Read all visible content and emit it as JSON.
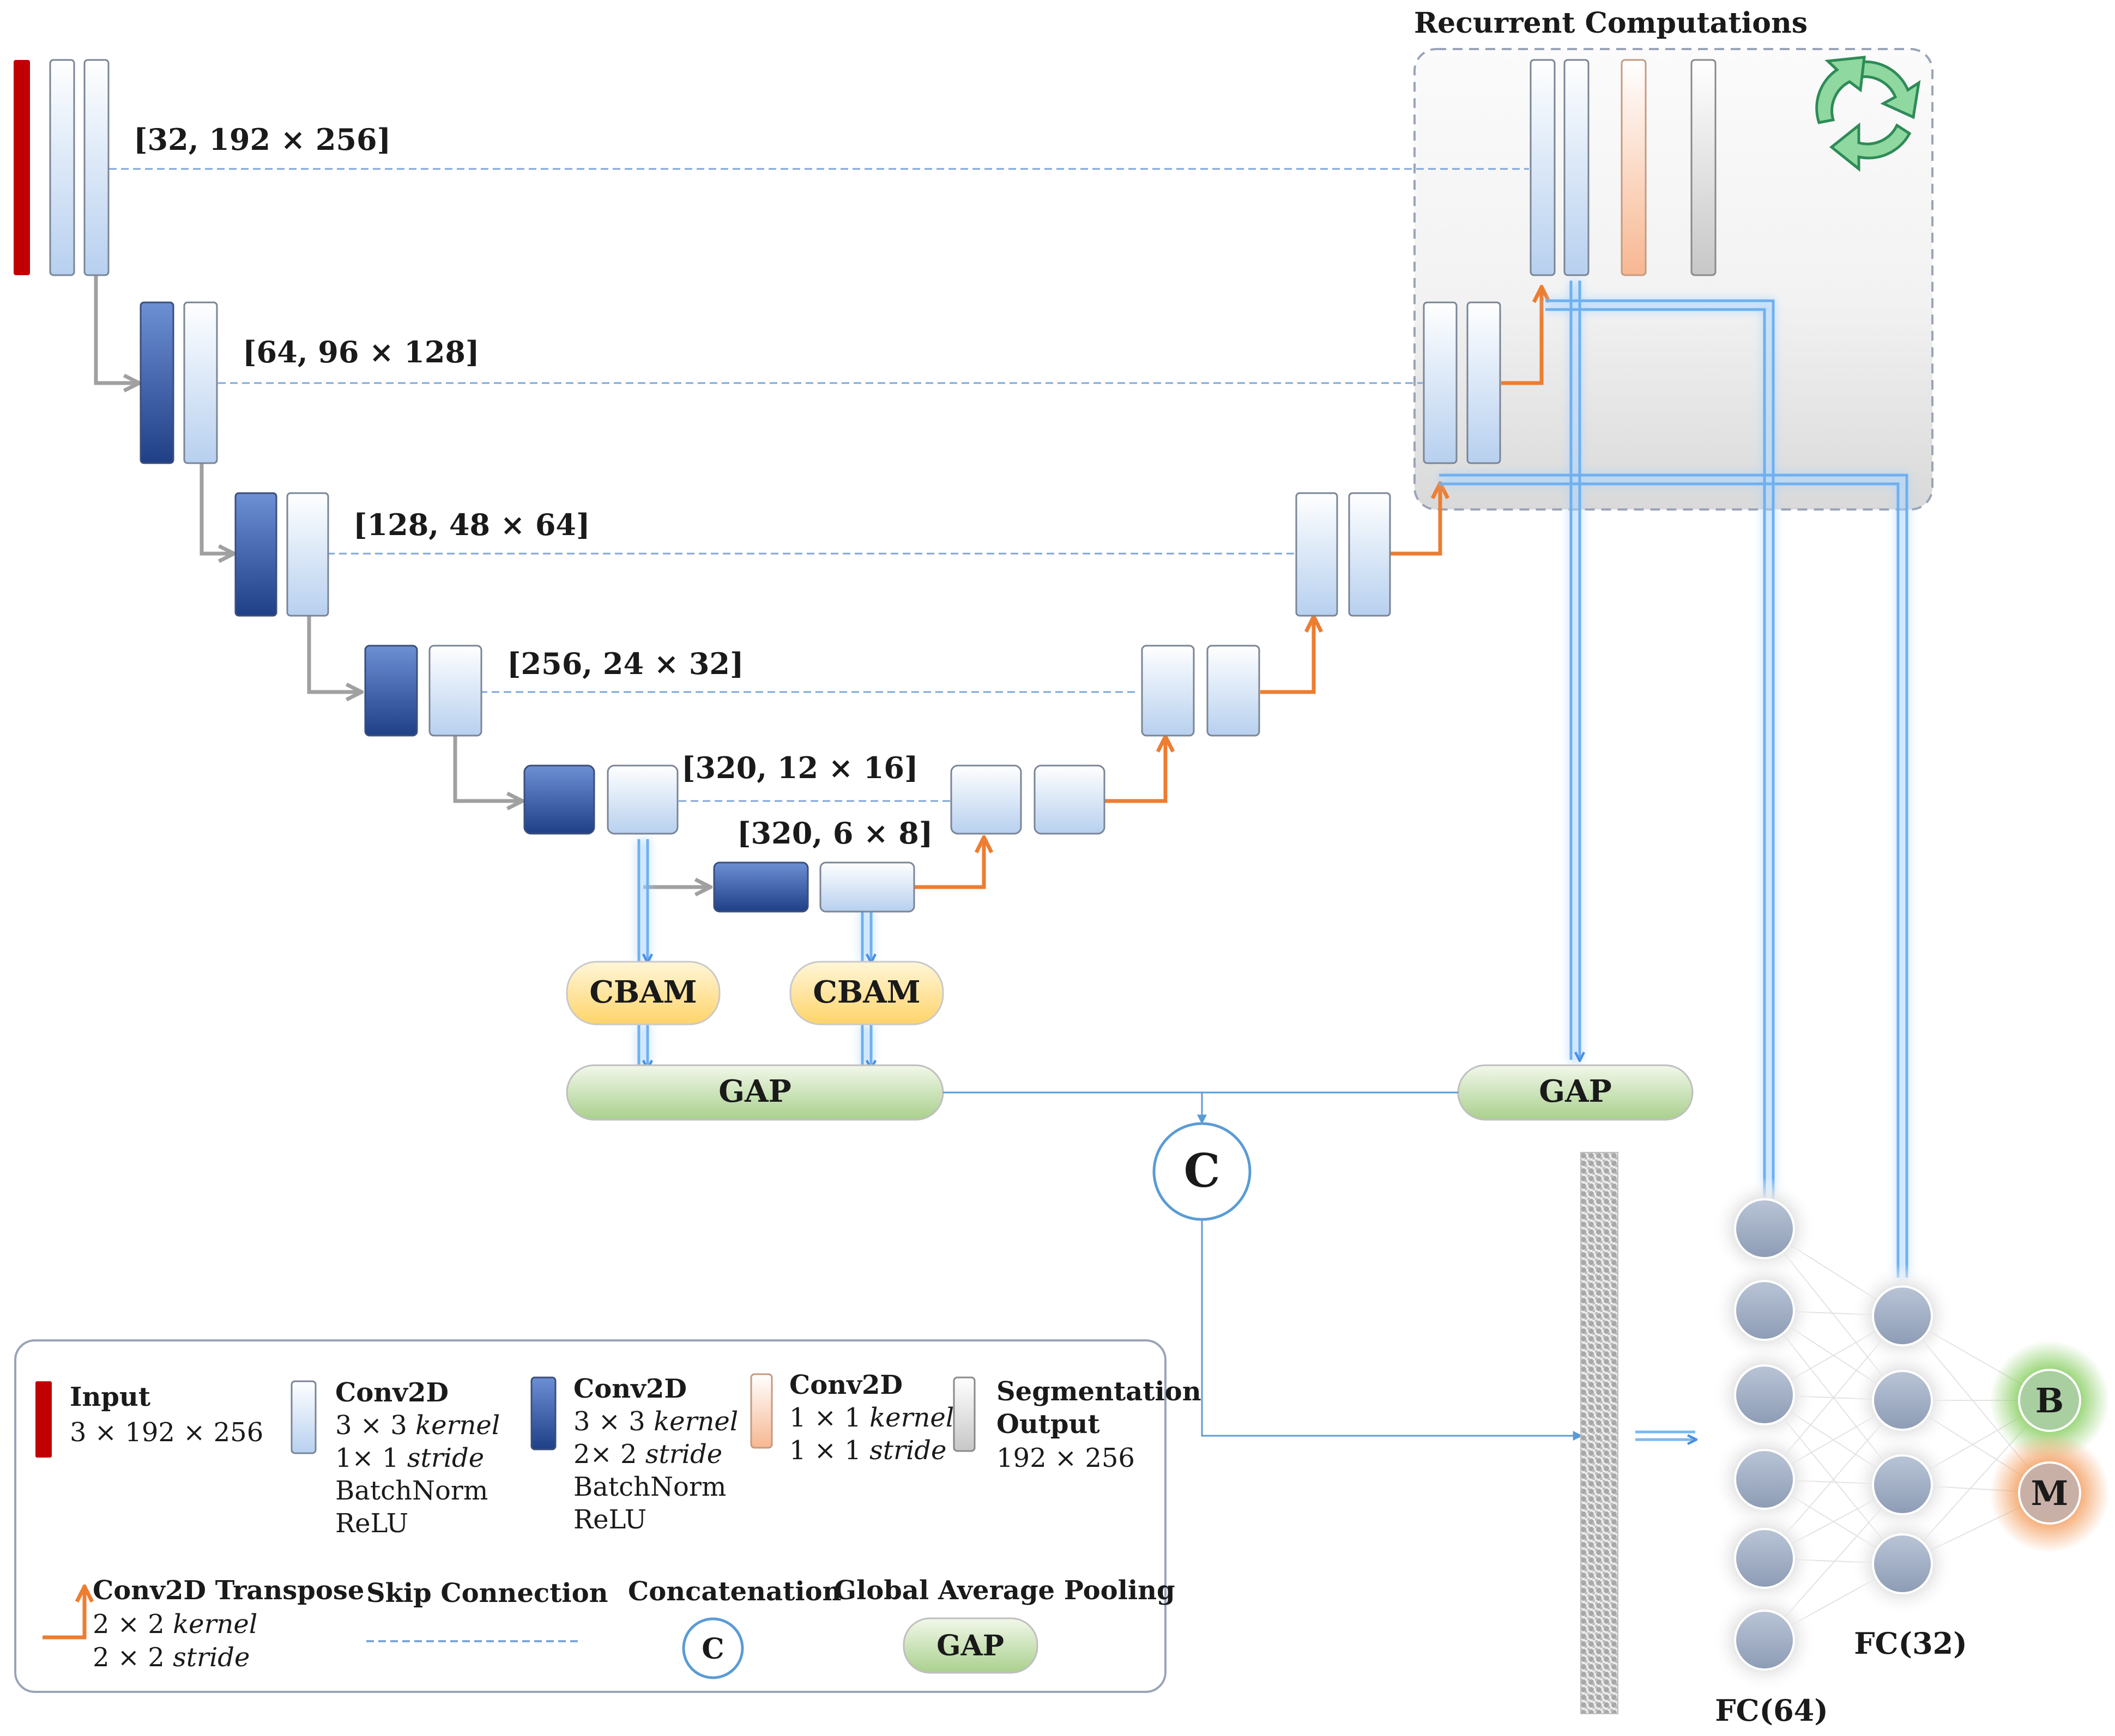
{
  "recurrent": {
    "title": "Recurrent Computations"
  },
  "encoder_shapes": [
    "[32, 192 × 256]",
    "[64, 96 × 128]",
    "[128, 48 × 64]",
    "[256, 24 × 32]",
    "[320, 12 × 16]",
    "[320, 6 × 8]"
  ],
  "modules": {
    "cbam_left": "CBAM",
    "cbam_right": "CBAM",
    "gap_left": "GAP",
    "gap_right": "GAP",
    "concat": "C"
  },
  "fc": {
    "fc64_label": "FC(64)",
    "fc32_label": "FC(32)"
  },
  "outputs": {
    "benign": "B",
    "malignant": "M"
  },
  "legend": {
    "input": {
      "title": "Input",
      "l1": "3 × 192 × 256"
    },
    "conv_light": {
      "title": "Conv2D",
      "l1a": "3 × 3 ",
      "l1b": "kernel",
      "l2a": "1× 1 ",
      "l2b": "stride",
      "l3": "BatchNorm",
      "l4": "ReLU"
    },
    "conv_dark": {
      "title": "Conv2D",
      "l1a": "3 × 3 ",
      "l1b": "kernel",
      "l2a": "2× 2 ",
      "l2b": "stride",
      "l3": "BatchNorm",
      "l4": "ReLU"
    },
    "conv_1x1": {
      "title": "Conv2D",
      "l1a": "1 × 1 ",
      "l1b": "kernel",
      "l2a": "1 × 1 ",
      "l2b": "stride"
    },
    "seg": {
      "title1": "Segmentation",
      "title2": "Output",
      "l1": "192 × 256"
    },
    "transpose": {
      "title": "Conv2D Transpose",
      "l1a": "2 × 2 ",
      "l1b": "kernel",
      "l2a": "2 × 2 ",
      "l2b": "stride"
    },
    "skip": {
      "title": "Skip Connection"
    },
    "concat": {
      "title": "Concatenation",
      "symbol": "C"
    },
    "gap": {
      "title": "Global Average Pooling",
      "symbol": "GAP"
    }
  },
  "colors": {
    "input_red": "#c00000",
    "conv_dark_blue": "#2f5597",
    "conv_light_blue": "#c5daf2",
    "conv_orange": "#f8c7a8",
    "seg_gray": "#d0d0d0",
    "transpose_orange": "#ed7d31",
    "down_arrow_gray": "#a0a0a0",
    "feature_flow_blue": "#7ab8f5",
    "cbam_yellow": "#ffd87a",
    "gap_green": "#b9d99a",
    "neuron_gray": "#9aa9c2",
    "benign_green": "#8fd16a",
    "malignant_orange": "#f4a56a"
  },
  "icons": {
    "recurrent": "recycle-arrows-icon"
  }
}
